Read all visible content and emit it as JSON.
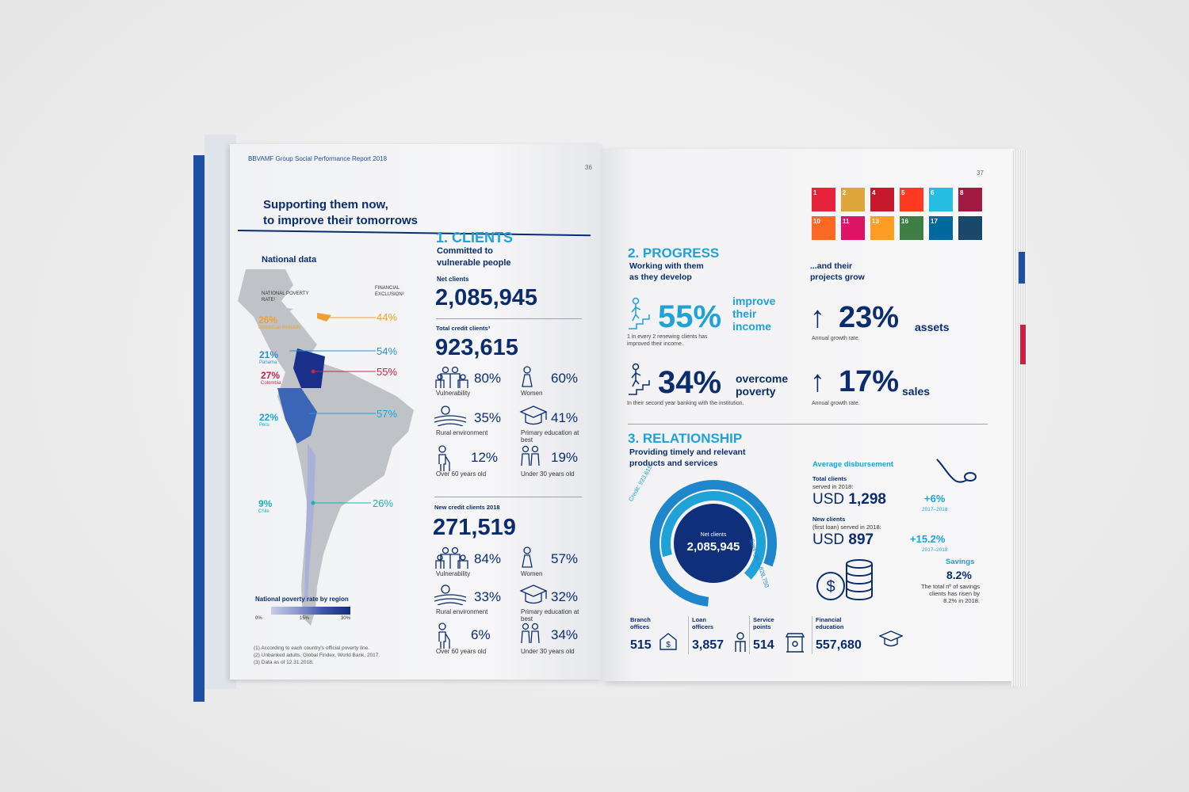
{
  "header": {
    "report_title": "BBVAMF Group Social Performance Report 2018",
    "page_left": "36",
    "page_right": "37"
  },
  "left": {
    "heading_line1": "Supporting them now,",
    "heading_line2": "to improve their tomorrows",
    "national_data": "National data",
    "poverty_rate_label": "NATIONAL POVERTY RATE¹",
    "financial_exclusion_label": "FINANCIAL EXCLUSION²",
    "countries": [
      {
        "rate": "26%",
        "name": "Dominican Republic",
        "exclusion": "44%",
        "color": "#f0a030"
      },
      {
        "rate": "21%",
        "name": "Panama",
        "exclusion": "54%",
        "color": "#2e8fd0"
      },
      {
        "rate": "27%",
        "name": "Colombia",
        "exclusion": "55%",
        "color": "#c8234a"
      },
      {
        "rate": "22%",
        "name": "Peru",
        "exclusion": "57%",
        "color": "#1ea2d8"
      },
      {
        "rate": "9%",
        "name": "Chile",
        "exclusion": "26%",
        "color": "#1eb0b8"
      }
    ],
    "legend_title": "National poverty rate by region",
    "legend_ticks": [
      "0%",
      "15%",
      "30%"
    ],
    "footnotes": [
      "(1) According to each country's official poverty line.",
      "(2) Unbanked adults. Global Findex, World Bank, 2017.",
      "(3) Data as of 12.31.2018."
    ]
  },
  "clients": {
    "heading": "1. CLIENTS",
    "sub1": "Committed to",
    "sub2": "vulnerable people",
    "net_label": "Net clients",
    "net_value": "2,085,945",
    "credit_label": "Total credit clients³",
    "credit_value": "923,615",
    "credit_stats": [
      {
        "value": "80%",
        "label": "Vulnerability"
      },
      {
        "value": "60%",
        "label": "Women"
      },
      {
        "value": "35%",
        "label": "Rural environment"
      },
      {
        "value": "41%",
        "label": "Primary education at best"
      },
      {
        "value": "12%",
        "label": "Over 60 years old"
      },
      {
        "value": "19%",
        "label": "Under 30 years old"
      }
    ],
    "new_label": "New credit clients 2018",
    "new_value": "271,519",
    "new_stats": [
      {
        "value": "84%",
        "label": "Vulnerability"
      },
      {
        "value": "57%",
        "label": "Women"
      },
      {
        "value": "33%",
        "label": "Rural environment"
      },
      {
        "value": "32%",
        "label": "Primary education at best"
      },
      {
        "value": "6%",
        "label": "Over 60 years old"
      },
      {
        "value": "34%",
        "label": "Under 30 years old"
      }
    ]
  },
  "progress": {
    "heading": "2. PROGRESS",
    "sub1": "Working with them",
    "sub2": "as they develop",
    "sub_right1": "...and their",
    "sub_right2": "projects grow",
    "income_pct": "55%",
    "income_label1": "improve",
    "income_label2": "their",
    "income_label3": "income",
    "income_note1": "1 in every 2 renewing clients has",
    "income_note2": "improved their income.",
    "poverty_pct": "34%",
    "poverty_label1": "overcome",
    "poverty_label2": "poverty",
    "poverty_note": "In their second year banking with the institution.",
    "assets_pct": "23%",
    "assets_label": "assets",
    "assets_note": "Annual growth rate.",
    "sales_pct": "17%",
    "sales_label": "sales",
    "sales_note": "Annual growth rate."
  },
  "relationship": {
    "heading": "3. RELATIONSHIP",
    "sub1": "Providing timely and relevant",
    "sub2": "products and services",
    "donut_center_label": "Net clients",
    "donut_center_value": "2,085,945",
    "credit_arc": "Credit: 923,615",
    "savings_arc": "Savings: 1,828,750",
    "avg_title": "Average disbursement",
    "total_clients_label": "Total clients",
    "total_clients_sub": "served in 2018:",
    "total_currency": "USD",
    "total_amount": "1,298",
    "total_growth": "+6%",
    "total_period": "2017–2018",
    "new_clients_label": "New clients",
    "new_clients_sub": "(first loan) served in 2018:",
    "new_currency": "USD",
    "new_amount": "897",
    "new_growth": "+15.2%",
    "new_period": "2017–2018",
    "savings_title": "Savings",
    "savings_value": "8.2%",
    "savings_note1": "The total nº of savings",
    "savings_note2": "clients has risen by",
    "savings_note3": "8.2% in 2018.",
    "bottom": [
      {
        "label1": "Branch",
        "label2": "offices",
        "value": "515"
      },
      {
        "label1": "Loan",
        "label2": "officers",
        "value": "3,857"
      },
      {
        "label1": "Service",
        "label2": "points",
        "value": "514"
      },
      {
        "label1": "Financial",
        "label2": "education",
        "value": "557,680"
      }
    ]
  },
  "sdg_colors": [
    "#e5243b",
    "#dda63a",
    "#c5192d",
    "#ff3a21",
    "#26bde2",
    "#a21942",
    "#fd6925",
    "#dd1367",
    "#fd9d24",
    "#3f7e44",
    "#00689d",
    "#19486a"
  ],
  "sdg_numbers": [
    "1",
    "2",
    "4",
    "5",
    "6",
    "8",
    "10",
    "11",
    "13",
    "16",
    "17",
    ""
  ]
}
